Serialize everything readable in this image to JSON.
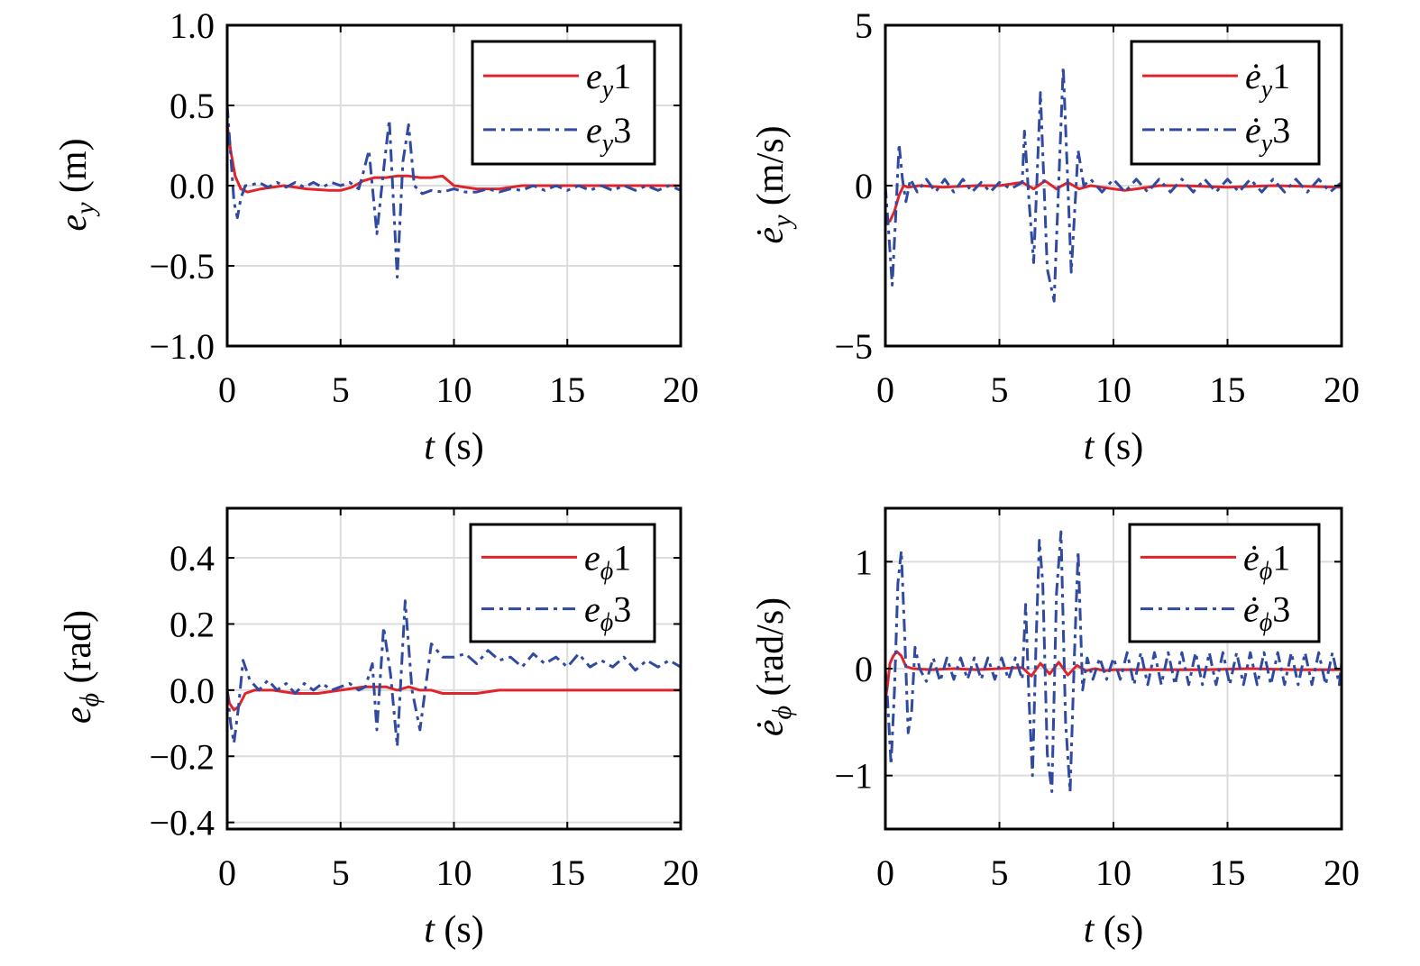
{
  "chart_data": [
    {
      "type": "line",
      "xlabel": "t (s)",
      "ylabel": "e_y (m)",
      "xlim": [
        0,
        20
      ],
      "ylim": [
        -1.0,
        1.0
      ],
      "xticks": [
        "0",
        "5",
        "10",
        "15",
        "20"
      ],
      "yticks": [
        "1.0",
        "0.5",
        "0.0",
        "−0.5",
        "−1.0"
      ],
      "grid": true,
      "legend_position": "top-right",
      "series": [
        {
          "name": "e_y1",
          "color": "#e0242c",
          "style": "solid",
          "x": [
            0,
            0.15,
            0.35,
            0.6,
            0.9,
            1.5,
            2.5,
            3.5,
            4.5,
            5.0,
            5.5,
            6.0,
            6.5,
            7.0,
            7.5,
            8.0,
            8.5,
            9.0,
            9.5,
            10.0,
            11.0,
            12.0,
            13.0,
            15.0,
            17.0,
            20.0
          ],
          "y": [
            0.38,
            0.22,
            0.06,
            -0.02,
            -0.04,
            -0.02,
            0.0,
            -0.02,
            -0.03,
            -0.03,
            -0.01,
            0.03,
            0.05,
            0.05,
            0.06,
            0.06,
            0.05,
            0.05,
            0.06,
            0.0,
            -0.02,
            -0.02,
            0.0,
            0.0,
            0.0,
            0.0
          ]
        },
        {
          "name": "e_y3",
          "color": "#2f4aa0",
          "style": "dashdot",
          "x": [
            0,
            0.15,
            0.3,
            0.45,
            0.6,
            0.8,
            1.0,
            1.4,
            1.8,
            2.2,
            2.6,
            3.0,
            3.4,
            3.8,
            4.2,
            4.6,
            5.0,
            5.4,
            5.8,
            6.0,
            6.25,
            6.6,
            6.9,
            7.15,
            7.5,
            7.75,
            8.0,
            8.25,
            8.6,
            9.0,
            9.5,
            10.0,
            10.5,
            11.0,
            11.5,
            12.0,
            12.5,
            13.0,
            13.5,
            14.0,
            14.5,
            15.0,
            15.5,
            16.0,
            16.5,
            17.0,
            17.5,
            18.0,
            18.5,
            19.0,
            19.5,
            20.0
          ],
          "y": [
            0.5,
            0.2,
            -0.1,
            -0.2,
            -0.08,
            0.0,
            0.0,
            0.02,
            -0.01,
            0.02,
            -0.01,
            0.02,
            -0.01,
            0.02,
            -0.01,
            0.02,
            0.0,
            0.02,
            -0.02,
            0.08,
            0.22,
            -0.3,
            0.1,
            0.41,
            -0.57,
            0.15,
            0.38,
            0.0,
            -0.05,
            -0.03,
            -0.04,
            -0.02,
            -0.04,
            -0.04,
            -0.02,
            -0.04,
            -0.02,
            -0.03,
            0.0,
            -0.03,
            0.0,
            -0.03,
            0.0,
            -0.03,
            0.0,
            -0.03,
            0.0,
            -0.03,
            0.0,
            -0.03,
            0.0,
            -0.03
          ]
        }
      ]
    },
    {
      "type": "line",
      "xlabel": "t (s)",
      "ylabel": "ė_y (m/s)",
      "xlim": [
        0,
        20
      ],
      "ylim": [
        -5,
        5
      ],
      "xticks": [
        "0",
        "5",
        "10",
        "15",
        "20"
      ],
      "yticks": [
        "5",
        "0",
        "−5"
      ],
      "grid": true,
      "legend_position": "top-right",
      "series": [
        {
          "name": "ė_y1",
          "color": "#e0242c",
          "style": "solid",
          "x": [
            0,
            0.2,
            0.4,
            0.6,
            0.8,
            1.0,
            1.5,
            2.5,
            4.0,
            5.0,
            6.0,
            6.5,
            7.0,
            7.5,
            8.0,
            8.5,
            9.0,
            9.5,
            10.0,
            10.5,
            11.0,
            12.0,
            13.0,
            15.0,
            17.0,
            20.0
          ],
          "y": [
            -1.2,
            -1.1,
            -0.8,
            -0.3,
            0.0,
            -0.05,
            0.0,
            -0.05,
            0.0,
            0.0,
            0.1,
            -0.1,
            0.15,
            -0.1,
            0.1,
            -0.1,
            0.0,
            -0.05,
            -0.1,
            -0.15,
            -0.1,
            0.0,
            0.0,
            -0.05,
            0.0,
            -0.05
          ]
        },
        {
          "name": "ė_y3",
          "color": "#2f4aa0",
          "style": "dashdot",
          "x": [
            0,
            0.15,
            0.3,
            0.45,
            0.6,
            0.75,
            0.9,
            1.1,
            1.4,
            1.8,
            2.2,
            2.6,
            3.0,
            3.4,
            3.8,
            4.2,
            4.6,
            5.0,
            5.5,
            6.0,
            6.1,
            6.3,
            6.5,
            6.8,
            7.1,
            7.4,
            7.8,
            8.15,
            8.45,
            8.7,
            9.0,
            9.5,
            10.0,
            10.5,
            11.0,
            11.5,
            12.0,
            12.5,
            13.0,
            13.5,
            14.0,
            14.5,
            15.0,
            15.5,
            16.0,
            16.5,
            17.0,
            17.5,
            18.0,
            18.5,
            19.0,
            19.5,
            20.0
          ],
          "y": [
            0.0,
            -1.5,
            -3.1,
            -1.0,
            1.3,
            0.2,
            -0.5,
            0.2,
            -0.2,
            0.2,
            -0.2,
            0.2,
            -0.2,
            0.2,
            -0.2,
            0.1,
            -0.2,
            0.1,
            -0.1,
            0.1,
            1.7,
            -0.5,
            -2.4,
            2.9,
            -2.6,
            -3.6,
            3.7,
            -2.7,
            1.1,
            0.0,
            0.2,
            -0.2,
            0.2,
            -0.2,
            0.2,
            -0.2,
            0.2,
            -0.2,
            0.2,
            -0.2,
            0.2,
            -0.2,
            0.2,
            -0.2,
            0.2,
            -0.2,
            0.2,
            -0.2,
            0.2,
            -0.2,
            0.2,
            -0.2,
            0.1
          ]
        }
      ]
    },
    {
      "type": "line",
      "xlabel": "t (s)",
      "ylabel": "e_ϕ (rad)",
      "xlim": [
        0,
        20
      ],
      "ylim": [
        -0.42,
        0.55
      ],
      "xticks": [
        "0",
        "5",
        "10",
        "15",
        "20"
      ],
      "yticks": [
        "0.4",
        "0.2",
        "0.0",
        "−0.2",
        "−0.4"
      ],
      "grid": true,
      "legend_position": "top-right",
      "series": [
        {
          "name": "e_ϕ1",
          "color": "#e0242c",
          "style": "solid",
          "x": [
            0,
            0.1,
            0.3,
            0.5,
            0.8,
            1.2,
            2.0,
            3.0,
            4.0,
            5.0,
            6.0,
            7.0,
            7.5,
            8.0,
            8.5,
            9.0,
            9.5,
            10.0,
            11.0,
            12.0,
            14.0,
            16.0,
            18.0,
            20.0
          ],
          "y": [
            0.0,
            -0.04,
            -0.06,
            -0.05,
            -0.01,
            0.0,
            0.0,
            -0.01,
            -0.01,
            0.0,
            0.01,
            0.01,
            0.0,
            0.01,
            0.0,
            0.0,
            -0.01,
            -0.01,
            -0.01,
            0.0,
            0.0,
            0.0,
            0.0,
            0.0
          ]
        },
        {
          "name": "e_ϕ3",
          "color": "#2f4aa0",
          "style": "dashdot",
          "x": [
            0,
            0.15,
            0.3,
            0.5,
            0.7,
            1.0,
            1.4,
            1.8,
            2.2,
            2.6,
            3.0,
            3.4,
            3.8,
            4.2,
            4.6,
            5.0,
            5.4,
            5.8,
            6.1,
            6.4,
            6.6,
            6.9,
            7.2,
            7.5,
            7.85,
            8.15,
            8.5,
            9.0,
            9.5,
            10.0,
            10.5,
            11.0,
            11.5,
            12.0,
            12.5,
            13.0,
            13.5,
            14.0,
            14.5,
            15.0,
            15.5,
            16.0,
            16.5,
            17.0,
            17.5,
            18.0,
            18.5,
            19.0,
            19.5,
            20.0
          ],
          "y": [
            0.0,
            -0.1,
            -0.16,
            -0.05,
            0.09,
            0.03,
            0.0,
            0.03,
            0.0,
            0.02,
            -0.01,
            0.02,
            0.0,
            0.02,
            0.0,
            0.01,
            0.02,
            0.0,
            0.01,
            0.08,
            -0.12,
            0.19,
            0.05,
            -0.17,
            0.27,
            0.0,
            -0.12,
            0.14,
            0.1,
            0.1,
            0.11,
            0.08,
            0.12,
            0.09,
            0.1,
            0.07,
            0.11,
            0.08,
            0.1,
            0.07,
            0.11,
            0.07,
            0.09,
            0.07,
            0.1,
            0.06,
            0.09,
            0.07,
            0.09,
            0.07
          ]
        }
      ]
    },
    {
      "type": "line",
      "xlabel": "t (s)",
      "ylabel": "ė_ϕ (rad/s)",
      "xlim": [
        0,
        20
      ],
      "ylim": [
        -1.5,
        1.5
      ],
      "xticks": [
        "0",
        "5",
        "10",
        "15",
        "20"
      ],
      "yticks": [
        "1",
        "0",
        "−1"
      ],
      "grid": true,
      "legend_position": "top-right",
      "series": [
        {
          "name": "ė_ϕ1",
          "color": "#e0242c",
          "style": "solid",
          "x": [
            0,
            0.1,
            0.2,
            0.35,
            0.5,
            0.7,
            0.9,
            1.2,
            2.0,
            3.0,
            4.0,
            5.0,
            6.0,
            6.4,
            6.8,
            7.2,
            7.6,
            8.0,
            8.4,
            8.8,
            9.2,
            9.6,
            10.0,
            11.0,
            12.0,
            14.0,
            16.0,
            18.0,
            20.0
          ],
          "y": [
            -0.3,
            -0.15,
            0.05,
            0.12,
            0.16,
            0.12,
            0.02,
            0.0,
            -0.01,
            0.0,
            -0.01,
            0.0,
            0.01,
            -0.07,
            0.05,
            -0.05,
            0.06,
            -0.06,
            0.03,
            -0.02,
            0.0,
            -0.02,
            -0.01,
            -0.01,
            -0.01,
            -0.01,
            0.0,
            -0.01,
            -0.01
          ]
        },
        {
          "name": "ė_ϕ3",
          "color": "#2f4aa0",
          "style": "dashdot",
          "x": [
            0,
            0.1,
            0.25,
            0.4,
            0.55,
            0.7,
            0.85,
            1.0,
            1.15,
            1.3,
            1.5,
            1.8,
            2.1,
            2.4,
            2.7,
            3.0,
            3.3,
            3.6,
            3.9,
            4.2,
            4.5,
            4.8,
            5.1,
            5.4,
            5.7,
            6.0,
            6.15,
            6.3,
            6.45,
            6.6,
            6.75,
            6.9,
            7.1,
            7.3,
            7.5,
            7.7,
            7.9,
            8.1,
            8.3,
            8.45,
            8.65,
            8.85,
            9.1,
            9.4,
            9.7,
            10.0,
            10.3,
            10.6,
            10.9,
            11.2,
            11.5,
            11.8,
            12.1,
            12.4,
            12.7,
            13.0,
            13.3,
            13.6,
            13.9,
            14.2,
            14.5,
            14.8,
            15.1,
            15.4,
            15.7,
            16.0,
            16.3,
            16.6,
            16.9,
            17.2,
            17.5,
            17.8,
            18.1,
            18.4,
            18.7,
            19.0,
            19.3,
            19.6,
            19.9,
            20.0
          ],
          "y": [
            0.0,
            -0.3,
            -0.9,
            -0.2,
            0.8,
            1.1,
            0.3,
            -0.6,
            -0.4,
            0.2,
            0.0,
            -0.12,
            0.1,
            -0.12,
            0.1,
            -0.1,
            0.1,
            -0.1,
            0.1,
            -0.1,
            0.1,
            -0.1,
            0.1,
            -0.1,
            0.1,
            -0.1,
            0.6,
            -0.3,
            -1.0,
            0.2,
            1.2,
            0.8,
            -0.8,
            -1.15,
            0.7,
            1.28,
            -0.5,
            -1.15,
            0.2,
            1.1,
            -0.2,
            0.1,
            -0.1,
            0.1,
            -0.1,
            0.1,
            -0.1,
            0.15,
            -0.15,
            0.15,
            -0.15,
            0.15,
            -0.15,
            0.15,
            -0.15,
            0.15,
            -0.15,
            0.15,
            -0.15,
            0.15,
            -0.15,
            0.15,
            -0.15,
            0.15,
            -0.15,
            0.15,
            -0.15,
            0.15,
            -0.15,
            0.15,
            -0.15,
            0.15,
            -0.15,
            0.15,
            -0.15,
            0.15,
            -0.15,
            0.15,
            -0.15,
            0.05
          ]
        }
      ]
    }
  ]
}
